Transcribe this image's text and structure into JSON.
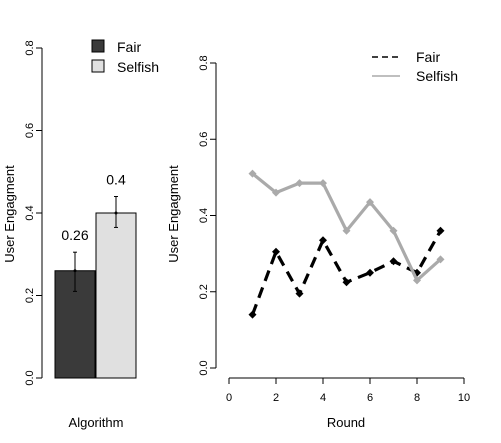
{
  "chart_data": [
    {
      "type": "bar",
      "title": "",
      "xlabel": "Algorithm",
      "ylabel": "User Engagment",
      "ylim": [
        0,
        0.8
      ],
      "yticks": [
        "0.0",
        "0.2",
        "0.4",
        "0.6",
        "0.8"
      ],
      "categories": [
        "Fair",
        "Selfish"
      ],
      "values": [
        0.26,
        0.4
      ],
      "value_labels": [
        "0.26",
        "0.4"
      ],
      "error_bars": [
        [
          0.21,
          0.305
        ],
        [
          0.365,
          0.44
        ]
      ],
      "colors": [
        "#3a3a3a",
        "#e0e0e0"
      ],
      "legend": {
        "position": "top",
        "entries": [
          "Fair",
          "Selfish"
        ]
      },
      "grid": false
    },
    {
      "type": "line",
      "title": "",
      "xlabel": "Round",
      "ylabel": "User Engagment",
      "xlim": [
        0,
        10
      ],
      "ylim": [
        0,
        0.8
      ],
      "xticks": [
        "0",
        "2",
        "4",
        "6",
        "8",
        "10"
      ],
      "yticks": [
        "0.0",
        "0.2",
        "0.4",
        "0.6",
        "0.8"
      ],
      "x": [
        1,
        2,
        3,
        4,
        5,
        6,
        7,
        8,
        9
      ],
      "series": [
        {
          "name": "Fair",
          "values": [
            0.14,
            0.305,
            0.195,
            0.335,
            0.225,
            0.25,
            0.28,
            0.25,
            0.36
          ],
          "color": "#000000",
          "style": "dashed"
        },
        {
          "name": "Selfish",
          "values": [
            0.51,
            0.46,
            0.485,
            0.485,
            0.36,
            0.435,
            0.36,
            0.23,
            0.285
          ],
          "color": "#aaaaaa",
          "style": "solid"
        }
      ],
      "legend": {
        "position": "top-right",
        "entries": [
          "Fair",
          "Selfish"
        ]
      },
      "grid": false
    }
  ]
}
